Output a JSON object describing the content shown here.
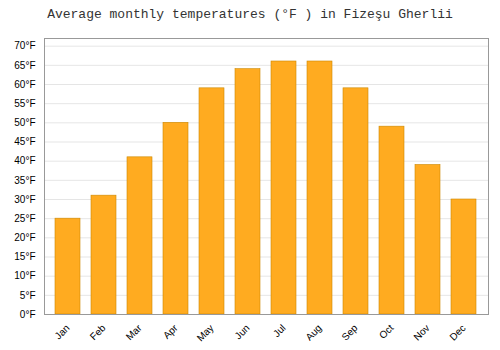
{
  "chart_data": {
    "type": "bar",
    "title": "Average monthly temperatures (°F ) in Fizeşu Gherlii",
    "categories": [
      "Jan",
      "Feb",
      "Mar",
      "Apr",
      "May",
      "Jun",
      "Jul",
      "Aug",
      "Sep",
      "Oct",
      "Nov",
      "Dec"
    ],
    "values": [
      25.0,
      31.0,
      41.0,
      50.0,
      59.0,
      64.0,
      66.0,
      66.0,
      59.0,
      49.0,
      39.0,
      30.0
    ],
    "color": "#FFAB20",
    "ylim": [
      0,
      72
    ],
    "yticks": [
      {
        "value": 0,
        "label": "0°F"
      },
      {
        "value": 5,
        "label": "5°F"
      },
      {
        "value": 10,
        "label": "10°F"
      },
      {
        "value": 15,
        "label": "15°F"
      },
      {
        "value": 20,
        "label": "20°F"
      },
      {
        "value": 25,
        "label": "25°F"
      },
      {
        "value": 30,
        "label": "30°F"
      },
      {
        "value": 35,
        "label": "35°F"
      },
      {
        "value": 40,
        "label": "40°F"
      },
      {
        "value": 45,
        "label": "45°F"
      },
      {
        "value": 50,
        "label": "50°F"
      },
      {
        "value": 55,
        "label": "55°F"
      },
      {
        "value": 60,
        "label": "60°F"
      },
      {
        "value": 65,
        "label": "65°F"
      },
      {
        "value": 70,
        "label": "70°F"
      }
    ],
    "grid": true
  }
}
